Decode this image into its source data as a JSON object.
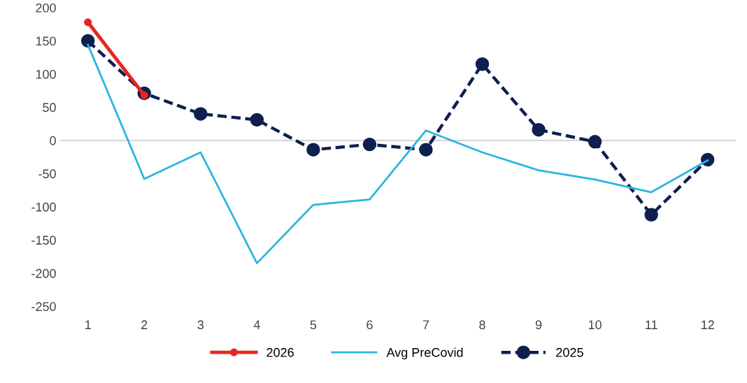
{
  "chart_data": {
    "type": "line",
    "categories": [
      "1",
      "2",
      "3",
      "4",
      "5",
      "6",
      "7",
      "8",
      "9",
      "10",
      "11",
      "12"
    ],
    "series": [
      {
        "name": "2026",
        "color": "#e8251f",
        "marker": "circle",
        "line_style": "solid",
        "values": [
          178,
          68,
          null,
          null,
          null,
          null,
          null,
          null,
          null,
          null,
          null,
          null
        ]
      },
      {
        "name": "Avg PreCovid",
        "color": "#2bb5e0",
        "marker": "none",
        "line_style": "solid",
        "values": [
          144,
          -58,
          -18,
          -185,
          -97,
          -89,
          15,
          -18,
          -45,
          -59,
          -78,
          -30
        ]
      },
      {
        "name": "2025",
        "color": "#0f1f4f",
        "marker": "circle",
        "line_style": "dashed",
        "values": [
          150,
          71,
          40,
          31,
          -14,
          -6,
          -14,
          115,
          16,
          -2,
          -112,
          -29
        ]
      }
    ],
    "ylim": [
      -250,
      200
    ],
    "yticks": [
      -250,
      -200,
      -150,
      -100,
      -50,
      0,
      50,
      100,
      150,
      200
    ],
    "ref_lines": [
      {
        "axis": "y",
        "value": 0,
        "color": "#c8c8c8"
      }
    ],
    "grid": false,
    "legend": "bottom"
  }
}
